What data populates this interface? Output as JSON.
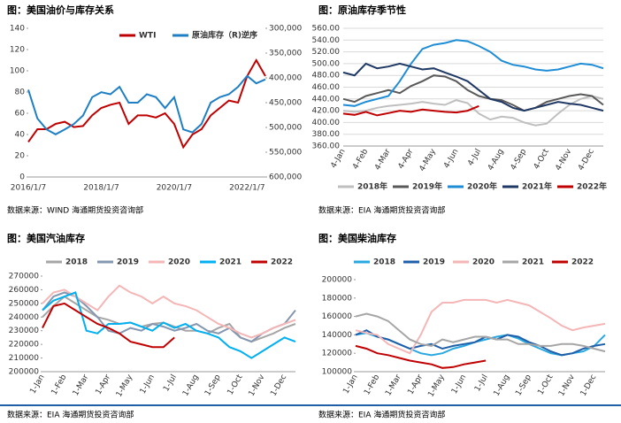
{
  "chart_data": [
    {
      "type": "line",
      "title": "图：美国油价与库存关系",
      "source": "数据来源：WIND   海通期货投资咨询部",
      "categories": [
        "2016/1/7",
        null,
        null,
        null,
        null,
        null,
        null,
        null,
        "2018/1/7",
        null,
        null,
        null,
        null,
        null,
        null,
        null,
        "2020/1/7",
        null,
        null,
        null,
        null,
        null,
        null,
        null,
        "2022/1/7",
        null,
        null
      ],
      "series": [
        {
          "name": "WTI",
          "color": "#c00000",
          "values": [
            33,
            45,
            45,
            50,
            52,
            47,
            48,
            58,
            65,
            68,
            70,
            50,
            58,
            58,
            56,
            60,
            50,
            28,
            40,
            45,
            58,
            65,
            72,
            70,
            95,
            110,
            95
          ]
        },
        {
          "name": "原油库存（R)逆序",
          "color": "#1f7fc4",
          "axis": "y2",
          "values": [
            424000,
            482000,
            504000,
            514000,
            504000,
            493000,
            476000,
            439000,
            429000,
            433000,
            418000,
            450000,
            450000,
            433000,
            439000,
            461000,
            439000,
            504000,
            510000,
            493000,
            450000,
            439000,
            433000,
            418000,
            396000,
            411000,
            403000
          ]
        }
      ],
      "ylim": [
        0,
        140
      ],
      "yticks": [
        0,
        20,
        40,
        60,
        80,
        100,
        120,
        140
      ],
      "y2lim": [
        300000,
        600000
      ],
      "y2_inverted": true,
      "y2ticks": [
        {
          "value": 300000,
          "label": "300,000"
        },
        {
          "value": 350000,
          "label": "350,000"
        },
        {
          "value": 400000,
          "label": "400,000"
        },
        {
          "value": 450000,
          "label": "450,000"
        },
        {
          "value": 500000,
          "label": "500,000"
        },
        {
          "value": 550000,
          "label": "550,000"
        },
        {
          "value": 600000,
          "label": "600,000"
        }
      ],
      "grid": false
    },
    {
      "type": "line",
      "title": "图：原油库存季节性",
      "source": "数据来源：EIA   海通期货投资咨询部",
      "categories": [
        "4-Jan",
        null,
        "4-Feb",
        null,
        "4-Mar",
        null,
        "4-Apr",
        null,
        "4-May",
        null,
        "4-Jun",
        null,
        "4-Jul",
        null,
        "4-Aug",
        null,
        "4-Sep",
        null,
        "4-Oct",
        null,
        "4-Nov",
        null,
        "4-Dec",
        null
      ],
      "series": [
        {
          "name": "2018年",
          "color": "#bfbfbf",
          "values": [
            420,
            418,
            420,
            425,
            428,
            430,
            432,
            435,
            432,
            430,
            438,
            433,
            415,
            405,
            410,
            408,
            400,
            395,
            398,
            415,
            430,
            440,
            445,
            440
          ]
        },
        {
          "name": "2019年",
          "color": "#595959",
          "values": [
            440,
            435,
            445,
            450,
            455,
            450,
            462,
            470,
            480,
            478,
            470,
            455,
            445,
            440,
            438,
            430,
            420,
            425,
            435,
            440,
            445,
            448,
            445,
            430
          ]
        },
        {
          "name": "2020年",
          "color": "#1f8dd6",
          "values": [
            430,
            428,
            435,
            440,
            445,
            470,
            500,
            525,
            532,
            535,
            540,
            538,
            530,
            520,
            505,
            498,
            495,
            490,
            488,
            490,
            495,
            500,
            498,
            492
          ]
        },
        {
          "name": "2021年",
          "color": "#1f3864",
          "values": [
            485,
            480,
            500,
            492,
            495,
            500,
            495,
            490,
            492,
            485,
            478,
            470,
            455,
            440,
            435,
            425,
            420,
            425,
            430,
            435,
            432,
            430,
            425,
            420
          ]
        },
        {
          "name": "2022年",
          "color": "#c00000",
          "values": [
            415,
            413,
            418,
            412,
            416,
            420,
            418,
            422,
            420,
            418,
            417,
            420,
            428,
            null,
            null,
            null,
            null,
            null,
            null,
            null,
            null,
            null,
            null,
            null
          ]
        }
      ],
      "ylim": [
        360,
        560
      ],
      "yticks": [
        {
          "value": 360,
          "label": "360.00"
        },
        {
          "value": 380,
          "label": "380.00"
        },
        {
          "value": 400,
          "label": "400.00"
        },
        {
          "value": 420,
          "label": "420.00"
        },
        {
          "value": 440,
          "label": "440.00"
        },
        {
          "value": 460,
          "label": "460.00"
        },
        {
          "value": 480,
          "label": "480.00"
        },
        {
          "value": 500,
          "label": "500.00"
        },
        {
          "value": 520,
          "label": "520.00"
        },
        {
          "value": 540,
          "label": "540.00"
        },
        {
          "value": 560,
          "label": "560.00"
        }
      ],
      "grid": true
    },
    {
      "type": "line",
      "title": "图：美国汽油库存",
      "source": "数据来源：EIA   海通期货投资咨询部",
      "categories": [
        "1-Jan",
        null,
        "1-Feb",
        null,
        "1-Mar",
        null,
        "1-Apr",
        null,
        "1-May",
        null,
        "1-Jun",
        null,
        "1-Jul",
        null,
        "1-Aug",
        null,
        "1-Sep",
        null,
        "1-Oct",
        null,
        "1-Nov",
        null,
        "1-Dec",
        null
      ],
      "series": [
        {
          "name": "2018",
          "color": "#a6a6a6",
          "values": [
            240000,
            248000,
            255000,
            250000,
            245000,
            240000,
            238000,
            235000,
            236000,
            233000,
            235000,
            236000,
            233000,
            230000,
            230000,
            228000,
            232000,
            235000,
            225000,
            222000,
            225000,
            228000,
            232000,
            235000
          ]
        },
        {
          "name": "2019",
          "color": "#8497b0",
          "values": [
            245000,
            255000,
            258000,
            255000,
            248000,
            240000,
            230000,
            228000,
            232000,
            230000,
            235000,
            233000,
            230000,
            232000,
            235000,
            230000,
            228000,
            232000,
            225000,
            222000,
            228000,
            232000,
            235000,
            245000
          ]
        },
        {
          "name": "2020",
          "color": "#f4b6b6",
          "values": [
            250000,
            258000,
            260000,
            255000,
            250000,
            245000,
            255000,
            263000,
            258000,
            255000,
            250000,
            255000,
            250000,
            248000,
            245000,
            240000,
            235000,
            232000,
            228000,
            225000,
            228000,
            232000,
            235000,
            238000
          ]
        },
        {
          "name": "2021",
          "color": "#00b0f0",
          "values": [
            245000,
            252000,
            255000,
            258000,
            230000,
            228000,
            235000,
            235000,
            236000,
            233000,
            230000,
            236000,
            232000,
            235000,
            230000,
            228000,
            225000,
            218000,
            215000,
            210000,
            215000,
            220000,
            225000,
            222000
          ]
        },
        {
          "name": "2022",
          "color": "#c00000",
          "values": [
            232000,
            248000,
            250000,
            245000,
            240000,
            235000,
            232000,
            228000,
            222000,
            220000,
            218000,
            218000,
            225000,
            null,
            null,
            null,
            null,
            null,
            null,
            null,
            null,
            null,
            null,
            null
          ]
        }
      ],
      "ylim": [
        200000,
        270000
      ],
      "yticks": [
        200000,
        210000,
        220000,
        230000,
        240000,
        250000,
        260000,
        270000
      ],
      "grid": false
    },
    {
      "type": "line",
      "title": "图：美国柴油库存",
      "source": "数据来源：EIA   海通期货投资咨询部",
      "categories": [
        "1-Jan",
        null,
        "1-Feb",
        null,
        "1-Mar",
        null,
        "1-Apr",
        null,
        "1-May",
        null,
        "1-Jun",
        null,
        "1-Jul",
        null,
        "1-Aug",
        null,
        "1-Sep",
        null,
        "1-Oct",
        null,
        "1-Nov",
        null,
        "1-Dec",
        null
      ],
      "series": [
        {
          "name": "2018",
          "color": "#29a8e0",
          "values": [
            140000,
            142000,
            138000,
            135000,
            130000,
            125000,
            120000,
            118000,
            120000,
            125000,
            128000,
            132000,
            135000,
            138000,
            140000,
            136000,
            130000,
            125000,
            120000,
            118000,
            120000,
            122000,
            128000,
            140000
          ]
        },
        {
          "name": "2019",
          "color": "#1f5fa8",
          "values": [
            140000,
            145000,
            138000,
            135000,
            130000,
            125000,
            128000,
            130000,
            125000,
            128000,
            130000,
            132000,
            138000,
            135000,
            140000,
            138000,
            132000,
            128000,
            122000,
            118000,
            120000,
            125000,
            128000,
            130000
          ]
        },
        {
          "name": "2020",
          "color": "#f4b6b6",
          "values": [
            145000,
            142000,
            140000,
            130000,
            125000,
            120000,
            140000,
            165000,
            175000,
            175000,
            178000,
            178000,
            178000,
            175000,
            178000,
            175000,
            172000,
            165000,
            158000,
            150000,
            145000,
            148000,
            150000,
            152000
          ]
        },
        {
          "name": "2021",
          "color": "#a6a6a6",
          "values": [
            160000,
            163000,
            160000,
            155000,
            145000,
            135000,
            130000,
            128000,
            135000,
            132000,
            135000,
            138000,
            138000,
            135000,
            135000,
            130000,
            130000,
            128000,
            128000,
            130000,
            130000,
            128000,
            125000,
            122000
          ]
        },
        {
          "name": "2022",
          "color": "#c00000",
          "values": [
            128000,
            125000,
            120000,
            118000,
            115000,
            112000,
            110000,
            108000,
            104000,
            105000,
            108000,
            110000,
            112000,
            null,
            null,
            null,
            null,
            null,
            null,
            null,
            null,
            null,
            null,
            null
          ]
        }
      ],
      "ylim": [
        100000,
        200000
      ],
      "yticks": [
        100000,
        120000,
        140000,
        160000,
        180000,
        200000
      ],
      "grid": false
    }
  ]
}
